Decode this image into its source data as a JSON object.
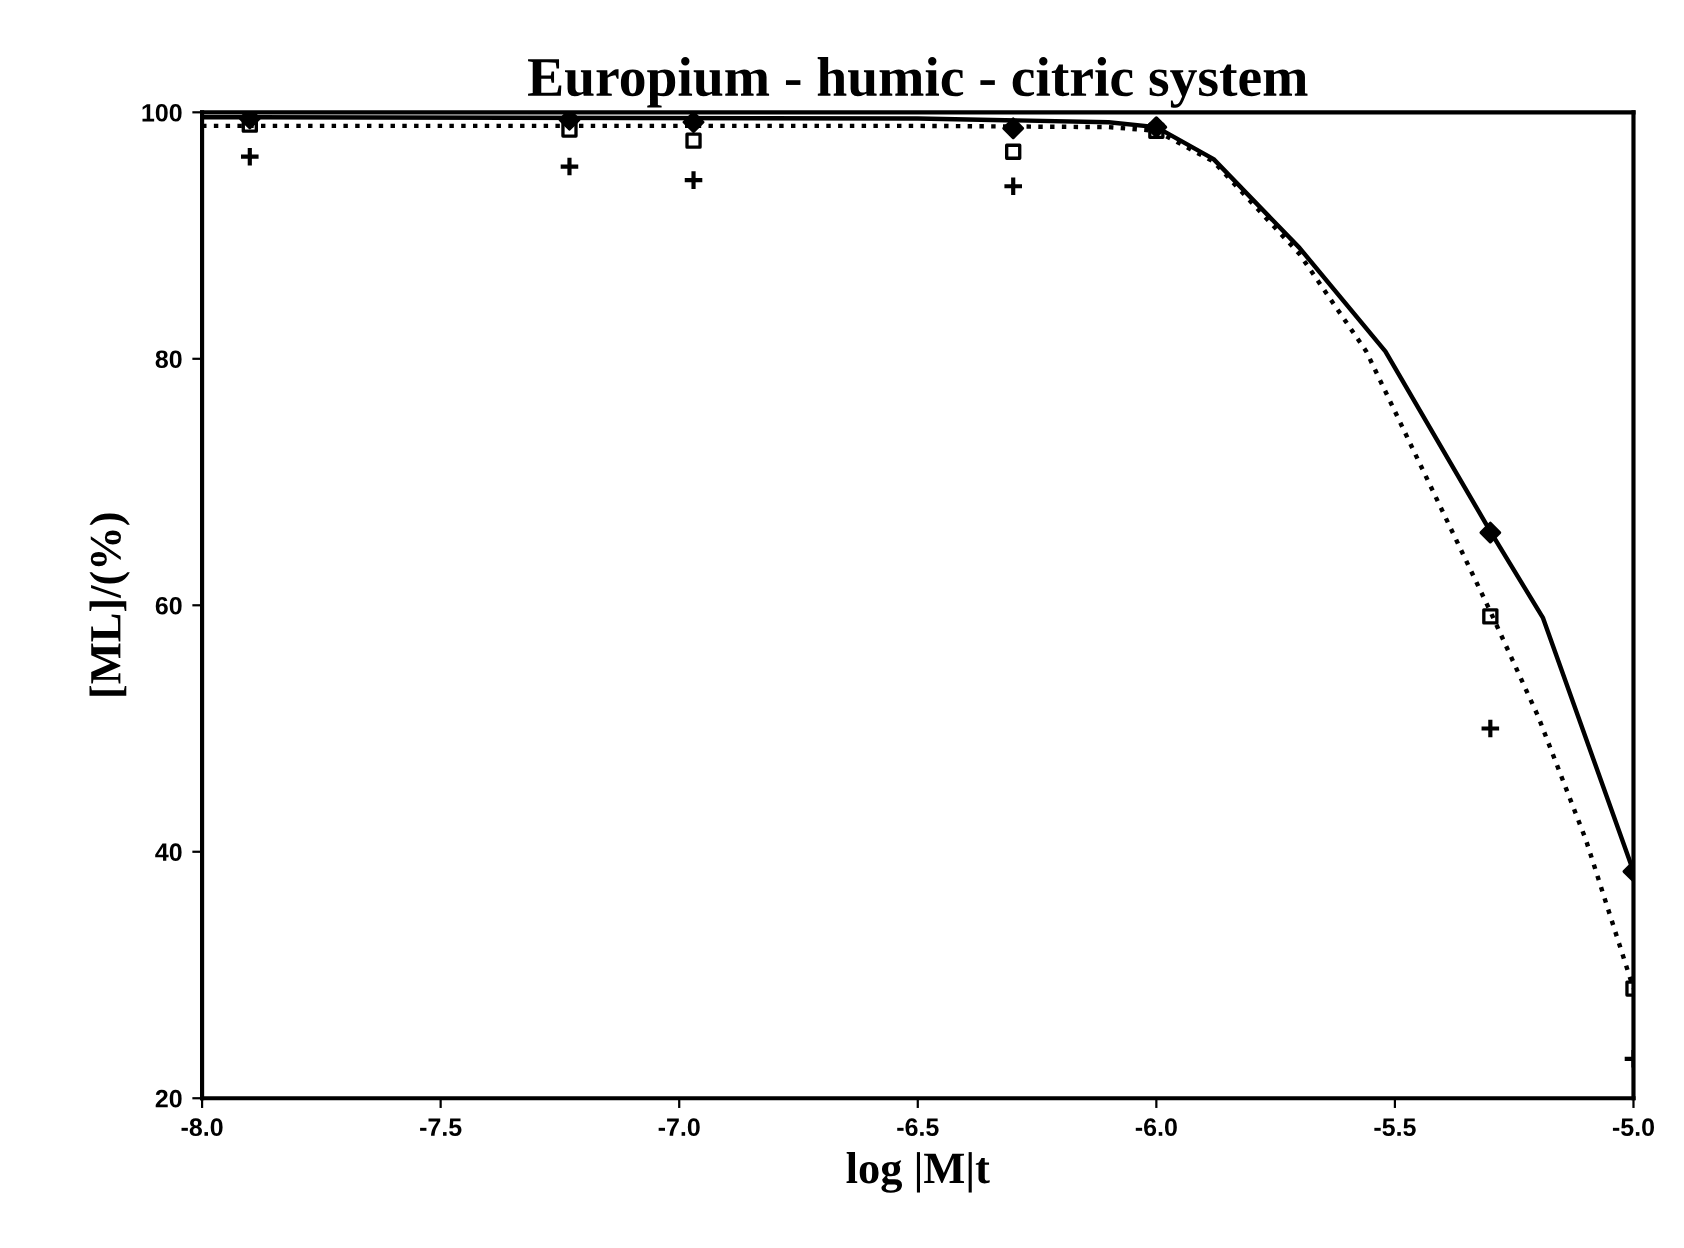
{
  "chart_data": {
    "type": "scatter",
    "title": "Europium - humic - citric system",
    "xlabel": "log |M|t",
    "ylabel": "[ML]/(%)",
    "xlim": [
      -8.0,
      -5.0
    ],
    "xticks": [
      {
        "value": -8.0,
        "label": "-8.0"
      },
      {
        "value": -7.5,
        "label": "-7.5"
      },
      {
        "value": -7.0,
        "label": "-7.0"
      },
      {
        "value": -6.5,
        "label": "-6.5"
      },
      {
        "value": -6.0,
        "label": "-6.0"
      },
      {
        "value": -5.5,
        "label": "-5.5"
      },
      {
        "value": -5.0,
        "label": "-5.0"
      }
    ],
    "ylim": [
      20,
      100
    ],
    "yticks": [
      20,
      40,
      60,
      80,
      100
    ],
    "grid": false,
    "legend": false,
    "series": [
      {
        "type": "line",
        "color": "#000000",
        "line_style": "solid",
        "marker": "none",
        "x": [
          -8.0,
          -6.5,
          -6.1,
          -6.0,
          -5.88,
          -5.7,
          -5.52,
          -5.3,
          -5.19,
          -5.0
        ],
        "values": [
          99.6,
          99.5,
          99.2,
          98.8,
          96.2,
          89,
          80.6,
          66.0,
          59.0,
          38.4
        ]
      },
      {
        "type": "line",
        "color": "#000000",
        "line_style": "dotted",
        "marker": "none",
        "x": [
          -8.0,
          -6.5,
          -6.1,
          -6.0,
          -5.88,
          -5.7,
          -5.56,
          -5.3,
          -5.2,
          -5.1,
          -5.0
        ],
        "values": [
          98.9,
          98.9,
          98.8,
          98.5,
          96.0,
          88.5,
          80.6,
          59.5,
          51,
          41,
          28.9
        ]
      },
      {
        "color": "#000000",
        "marker": "diamond",
        "x": [
          -7.9,
          -7.23,
          -6.97,
          -6.3,
          -6.0,
          -5.3,
          -5.0
        ],
        "values": [
          99.5,
          99.4,
          99.2,
          98.7,
          98.8,
          65.9,
          38.4
        ]
      },
      {
        "color": "#000000",
        "marker": "square",
        "x": [
          -7.9,
          -7.23,
          -6.97,
          -6.3,
          -6.0,
          -5.3,
          -5.0
        ],
        "values": [
          99.0,
          98.6,
          97.7,
          96.8,
          98.5,
          59.1,
          28.9
        ]
      },
      {
        "color": "#000000",
        "marker": "cross",
        "x": [
          -7.9,
          -7.23,
          -6.97,
          -6.3,
          -5.3,
          -5.0
        ],
        "values": [
          96.4,
          95.6,
          94.5,
          94.0,
          50.0,
          23.2
        ]
      }
    ]
  }
}
